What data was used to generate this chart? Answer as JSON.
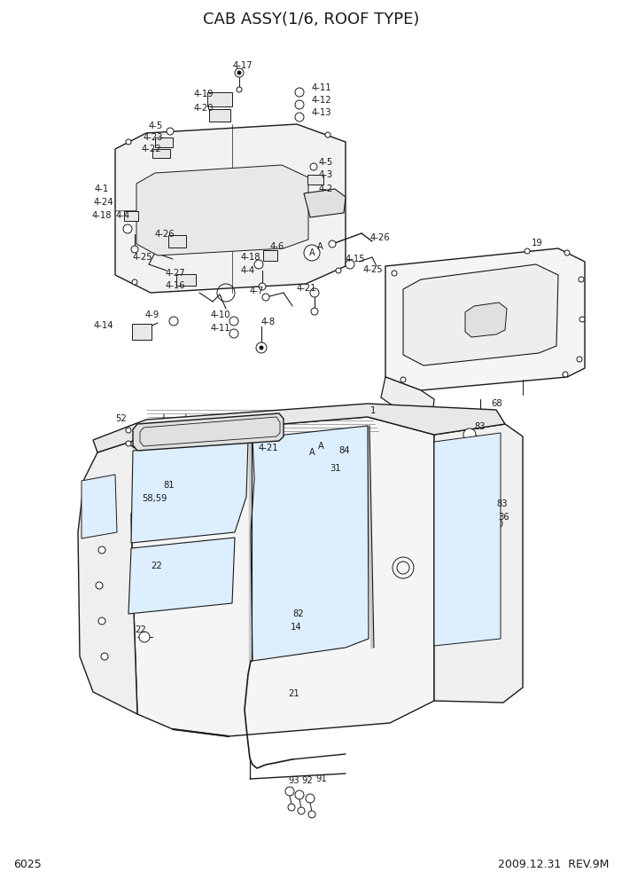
{
  "title": "CAB ASSY(1/6, ROOF TYPE)",
  "page_num": "6025",
  "date_rev": "2009.12.31  REV.9M",
  "bg_color": "#ffffff",
  "line_color": "#1a1a1a",
  "title_fontsize": 13,
  "label_fontsize": 7.2,
  "footer_fontsize": 9,
  "figw": 7.02,
  "figh": 9.92
}
